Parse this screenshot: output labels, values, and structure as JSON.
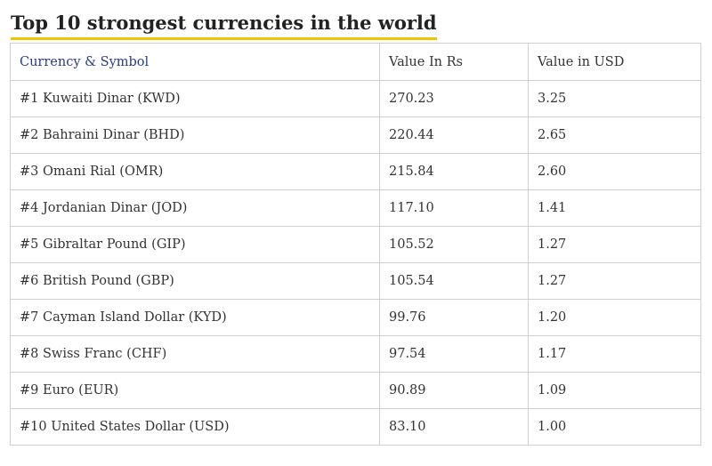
{
  "title": "Top 10 strongest currencies in the world",
  "colors": {
    "title_underline": "#f2c200",
    "header_currency_text": "#2a3a8a",
    "border": "#cfcfcf"
  },
  "table": {
    "headers": [
      "Currency & Symbol",
      "Value In Rs",
      "Value in USD"
    ],
    "rows": [
      [
        "#1 Kuwaiti Dinar (KWD)",
        "270.23",
        "3.25"
      ],
      [
        "#2 Bahraini Dinar (BHD)",
        "220.44",
        "2.65"
      ],
      [
        "#3 Omani Rial (OMR)",
        "215.84",
        "2.60"
      ],
      [
        "#4 Jordanian Dinar (JOD)",
        "117.10",
        "1.41"
      ],
      [
        "#5 Gibraltar Pound (GIP)",
        "105.52",
        "1.27"
      ],
      [
        "#6 British Pound (GBP)",
        "105.54",
        "1.27"
      ],
      [
        "#7 Cayman Island Dollar (KYD)",
        "99.76",
        "1.20"
      ],
      [
        "#8 Swiss Franc (CHF)",
        "97.54",
        "1.17"
      ],
      [
        "#9 Euro (EUR)",
        "90.89",
        "1.09"
      ],
      [
        "#10 United States Dollar (USD)",
        "83.10",
        "1.00"
      ]
    ]
  }
}
